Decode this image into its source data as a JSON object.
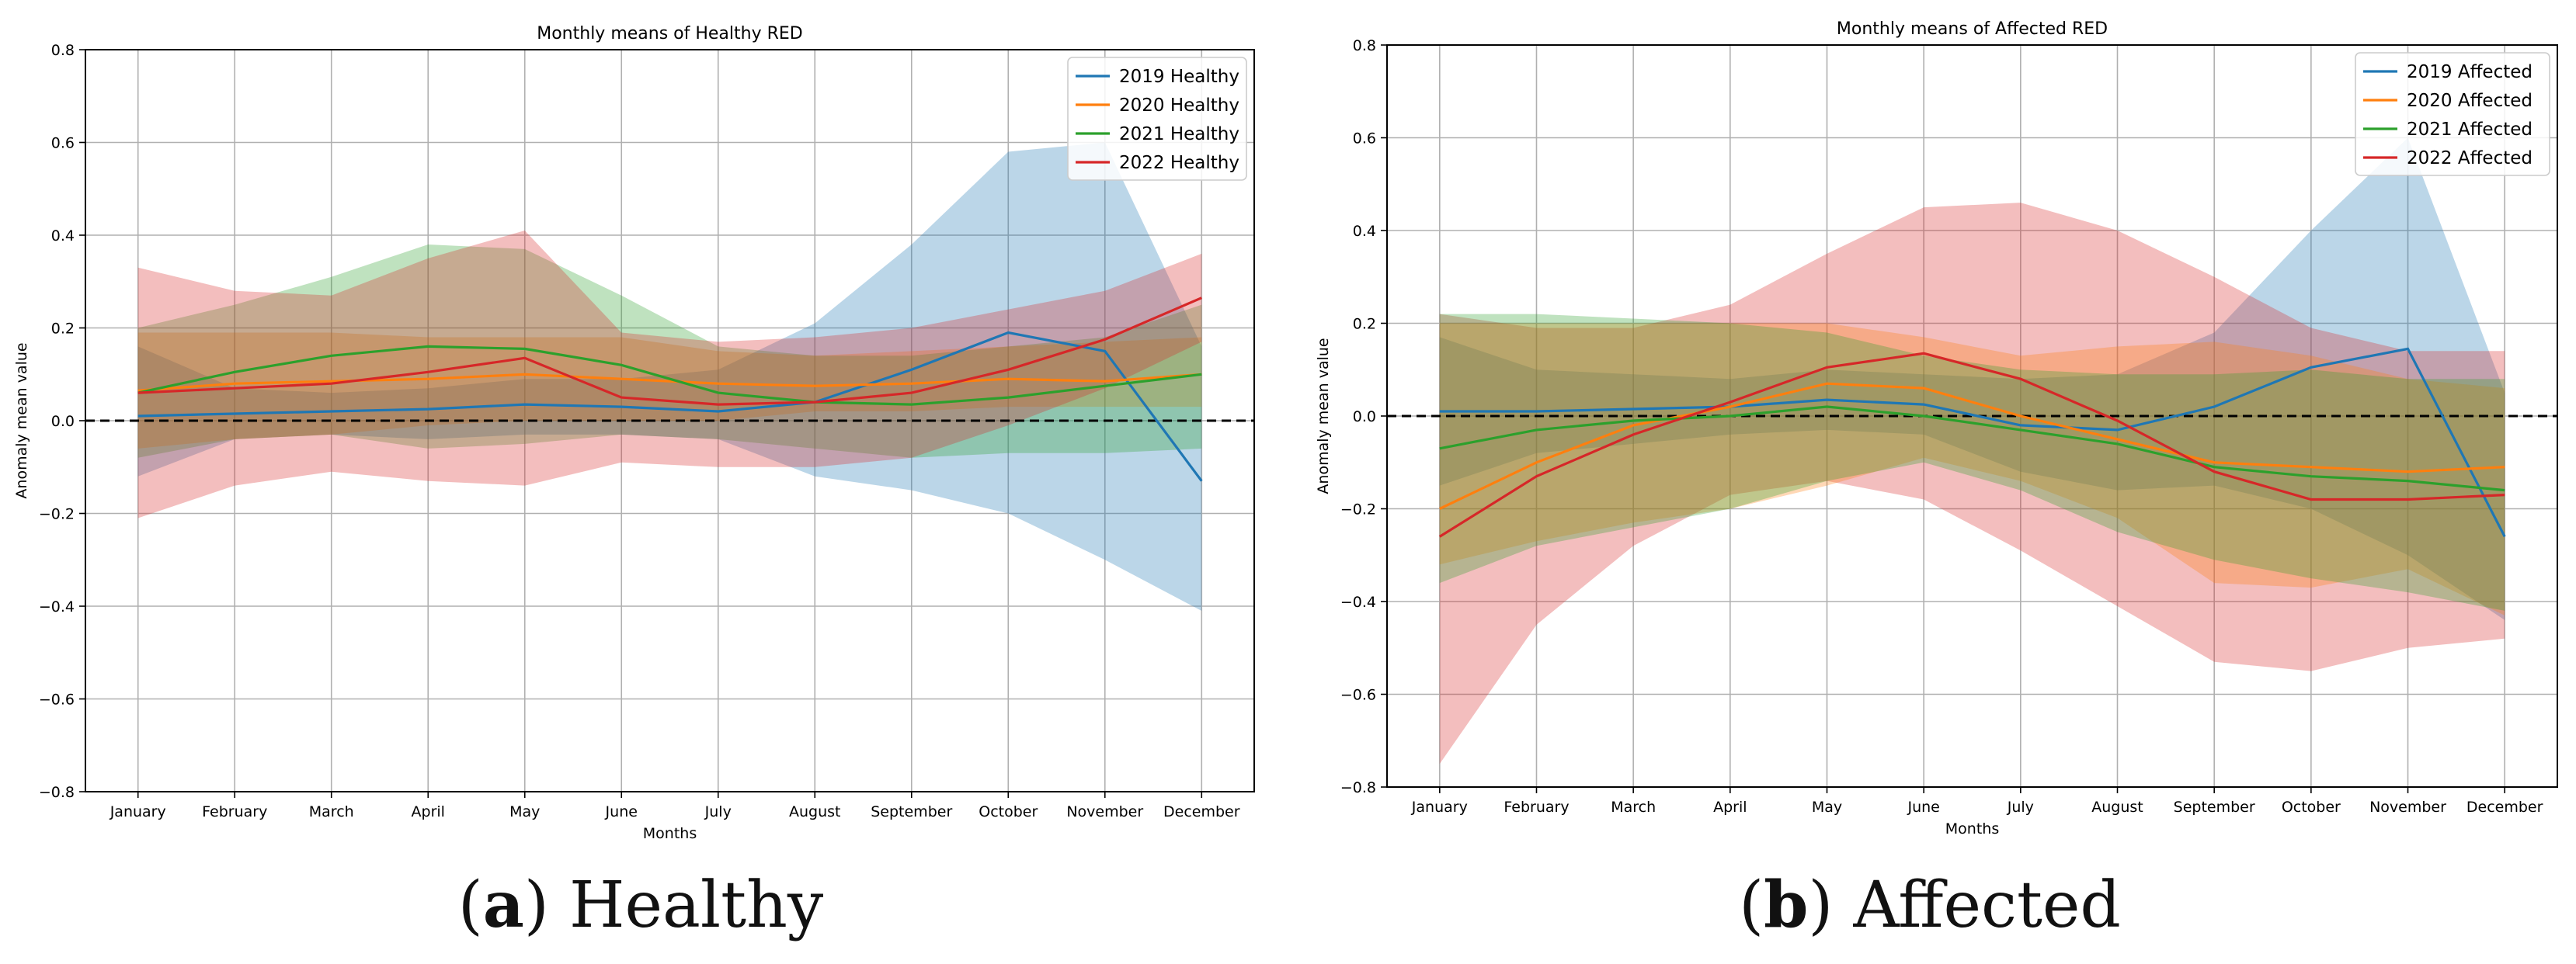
{
  "colors": {
    "2019": "#1f77b4",
    "2020": "#ff7f0e",
    "2021": "#2ca02c",
    "2022": "#d62728"
  },
  "captions": [
    {
      "label": "a",
      "text": "Healthy"
    },
    {
      "label": "b",
      "text": "Affected"
    }
  ],
  "chart_data": [
    {
      "type": "line",
      "title": "Monthly means of Healthy RED",
      "xlabel": "Months",
      "ylabel": "Anomaly mean value",
      "categories": [
        "January",
        "February",
        "March",
        "April",
        "May",
        "June",
        "July",
        "August",
        "September",
        "October",
        "November",
        "December"
      ],
      "ylim": [
        -0.8,
        0.8
      ],
      "yticks": [
        -0.8,
        -0.6,
        -0.4,
        -0.2,
        0.0,
        0.2,
        0.4,
        0.6,
        0.8
      ],
      "ytick_labels": [
        "−0.8",
        "−0.6",
        "−0.4",
        "−0.2",
        "0.0",
        "0.2",
        "0.4",
        "0.6",
        "0.8"
      ],
      "grid": true,
      "reference_line": 0.0,
      "legend_position": "top-right",
      "series": [
        {
          "name": "2019 Healthy",
          "year": "2019",
          "values": [
            0.01,
            0.015,
            0.02,
            0.025,
            0.035,
            0.03,
            0.02,
            0.04,
            0.11,
            0.19,
            0.15,
            -0.13
          ],
          "upper": [
            0.16,
            0.07,
            0.06,
            0.07,
            0.09,
            0.09,
            0.11,
            0.21,
            0.38,
            0.58,
            0.6,
            0.16
          ],
          "lower": [
            -0.12,
            -0.04,
            -0.03,
            -0.04,
            -0.03,
            -0.03,
            -0.04,
            -0.12,
            -0.15,
            -0.2,
            -0.3,
            -0.41
          ]
        },
        {
          "name": "2020 Healthy",
          "year": "2020",
          "values": [
            0.065,
            0.08,
            0.085,
            0.09,
            0.1,
            0.09,
            0.08,
            0.075,
            0.08,
            0.09,
            0.085,
            0.1
          ],
          "upper": [
            0.19,
            0.19,
            0.19,
            0.18,
            0.18,
            0.18,
            0.15,
            0.14,
            0.15,
            0.16,
            0.17,
            0.18
          ],
          "lower": [
            -0.06,
            -0.04,
            -0.03,
            -0.01,
            0.0,
            0.0,
            0.0,
            0.02,
            0.02,
            0.03,
            0.03,
            0.03
          ]
        },
        {
          "name": "2021 Healthy",
          "year": "2021",
          "values": [
            0.06,
            0.105,
            0.14,
            0.16,
            0.155,
            0.12,
            0.06,
            0.04,
            0.035,
            0.05,
            0.075,
            0.1
          ],
          "upper": [
            0.2,
            0.25,
            0.31,
            0.38,
            0.37,
            0.27,
            0.16,
            0.14,
            0.14,
            0.16,
            0.18,
            0.25
          ],
          "lower": [
            -0.08,
            -0.04,
            -0.03,
            -0.06,
            -0.05,
            -0.03,
            -0.04,
            -0.06,
            -0.08,
            -0.07,
            -0.07,
            -0.06
          ]
        },
        {
          "name": "2022 Healthy",
          "year": "2022",
          "values": [
            0.06,
            0.07,
            0.08,
            0.105,
            0.135,
            0.05,
            0.035,
            0.04,
            0.06,
            0.11,
            0.175,
            0.265
          ],
          "upper": [
            0.33,
            0.28,
            0.27,
            0.35,
            0.41,
            0.19,
            0.17,
            0.18,
            0.2,
            0.24,
            0.28,
            0.36
          ],
          "lower": [
            -0.21,
            -0.14,
            -0.11,
            -0.13,
            -0.14,
            -0.09,
            -0.1,
            -0.1,
            -0.08,
            -0.01,
            0.07,
            0.17
          ]
        }
      ]
    },
    {
      "type": "line",
      "title": "Monthly means of Affected RED",
      "xlabel": "Months",
      "ylabel": "Anomaly mean value",
      "categories": [
        "January",
        "February",
        "March",
        "April",
        "May",
        "June",
        "July",
        "August",
        "September",
        "October",
        "November",
        "December"
      ],
      "ylim": [
        -0.8,
        0.8
      ],
      "yticks": [
        -0.8,
        -0.6,
        -0.4,
        -0.2,
        0.0,
        0.2,
        0.4,
        0.6,
        0.8
      ],
      "ytick_labels": [
        "−0.8",
        "−0.6",
        "−0.4",
        "−0.2",
        "0.0",
        "0.2",
        "0.4",
        "0.6",
        "0.8"
      ],
      "grid": true,
      "reference_line": 0.0,
      "legend_position": "top-right",
      "series": [
        {
          "name": "2019 Affected",
          "year": "2019",
          "values": [
            0.01,
            0.01,
            0.015,
            0.02,
            0.035,
            0.025,
            -0.02,
            -0.03,
            0.02,
            0.105,
            0.145,
            -0.26
          ],
          "upper": [
            0.17,
            0.1,
            0.09,
            0.08,
            0.1,
            0.09,
            0.08,
            0.09,
            0.18,
            0.4,
            0.6,
            0.05
          ],
          "lower": [
            -0.15,
            -0.08,
            -0.06,
            -0.04,
            -0.03,
            -0.04,
            -0.12,
            -0.16,
            -0.15,
            -0.2,
            -0.3,
            -0.44
          ]
        },
        {
          "name": "2020 Affected",
          "year": "2020",
          "values": [
            -0.2,
            -0.1,
            -0.02,
            0.02,
            0.07,
            0.06,
            0.0,
            -0.05,
            -0.1,
            -0.11,
            -0.12,
            -0.11
          ]
        },
        {
          "name": "2021 Affected",
          "year": "2021",
          "values": [
            -0.07,
            -0.03,
            -0.01,
            0.0,
            0.02,
            0.0,
            -0.03,
            -0.06,
            -0.11,
            -0.13,
            -0.14,
            -0.16
          ]
        },
        {
          "name": "2022 Affected",
          "year": "2022",
          "values": [
            -0.26,
            -0.13,
            -0.04,
            0.03,
            0.105,
            0.135,
            0.08,
            -0.01,
            -0.12,
            -0.18,
            -0.18,
            -0.17
          ],
          "upper": [
            0.22,
            0.19,
            0.19,
            0.24,
            0.35,
            0.45,
            0.46,
            0.4,
            0.3,
            0.19,
            0.14,
            0.14
          ],
          "lower": [
            -0.75,
            -0.45,
            -0.28,
            -0.17,
            -0.14,
            -0.18,
            -0.29,
            -0.41,
            -0.53,
            -0.55,
            -0.5,
            -0.48
          ]
        }
      ],
      "extra_bands": [
        {
          "year": "2020",
          "upper": [
            0.2,
            0.2,
            0.2,
            0.2,
            0.2,
            0.17,
            0.13,
            0.15,
            0.16,
            0.13,
            0.08,
            0.06
          ],
          "lower": [
            -0.32,
            -0.27,
            -0.23,
            -0.2,
            -0.15,
            -0.09,
            -0.14,
            -0.22,
            -0.36,
            -0.37,
            -0.33,
            -0.43
          ]
        },
        {
          "year": "2021",
          "upper": [
            0.22,
            0.22,
            0.21,
            0.2,
            0.18,
            0.13,
            0.1,
            0.09,
            0.09,
            0.1,
            0.08,
            0.08
          ],
          "lower": [
            -0.36,
            -0.28,
            -0.24,
            -0.2,
            -0.14,
            -0.1,
            -0.16,
            -0.25,
            -0.31,
            -0.35,
            -0.38,
            -0.42
          ]
        }
      ]
    }
  ]
}
